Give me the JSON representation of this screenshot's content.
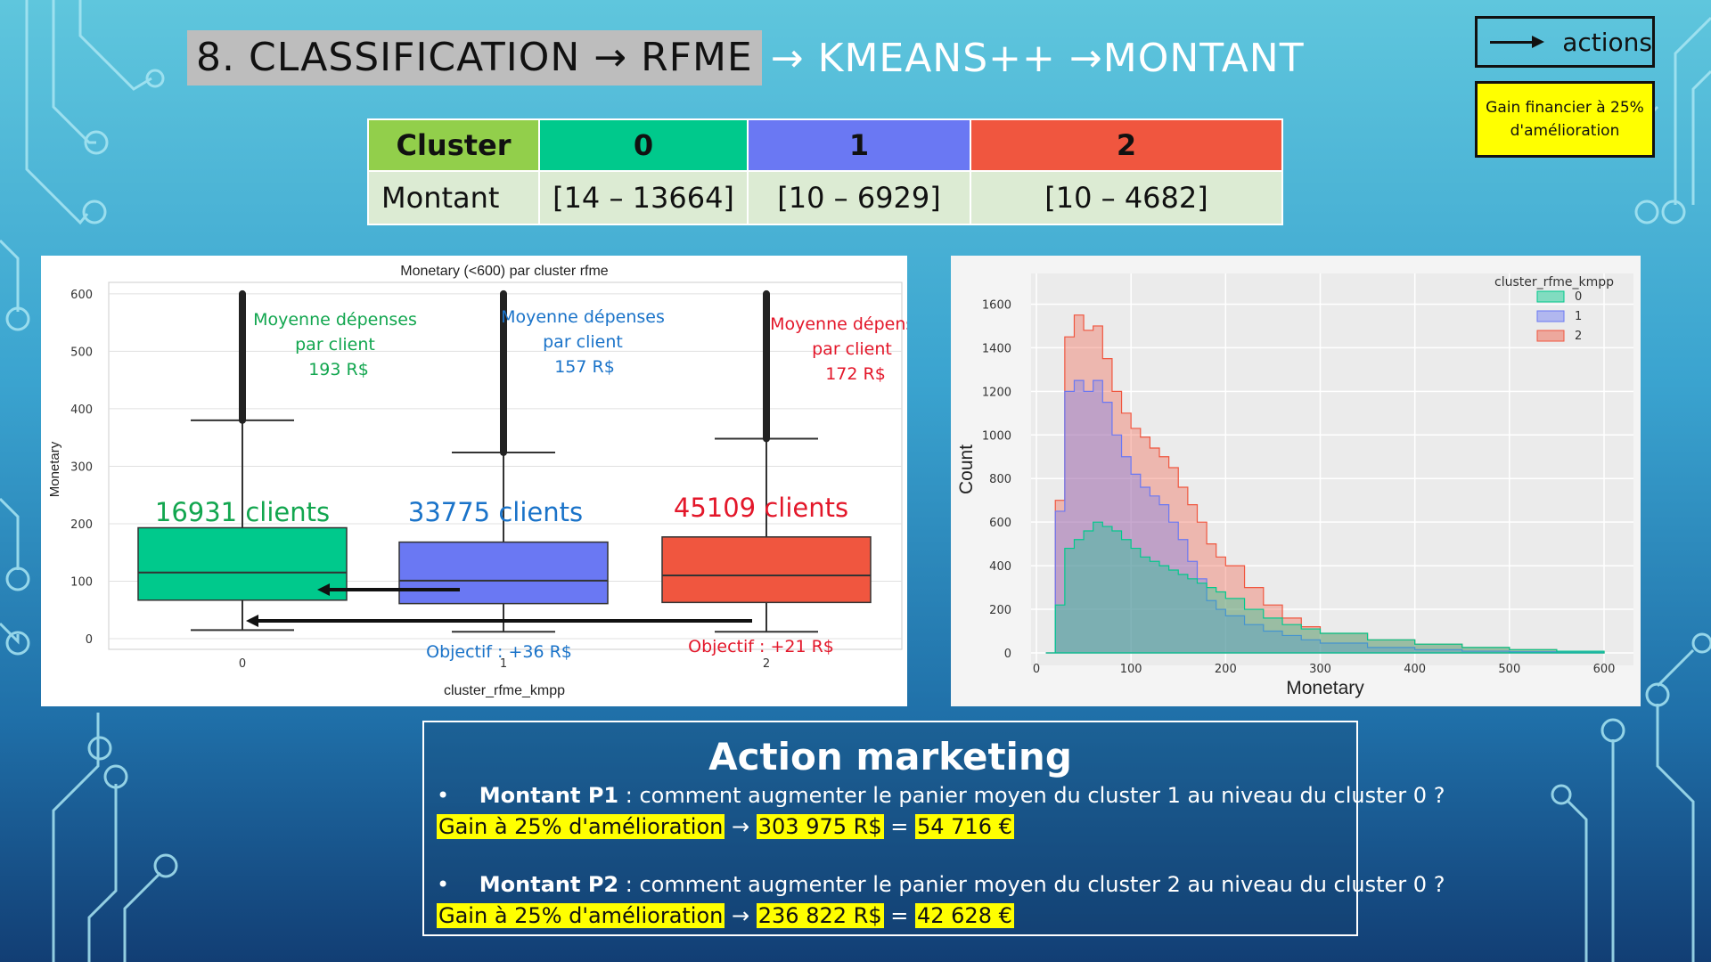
{
  "title": {
    "part1": "8. CLASSIFICATION → RFME",
    "part2": " → KMEANS++ →MONTANT"
  },
  "legend": {
    "actions_label": "actions",
    "gain_label": "Gain financier à 25% d'amélioration"
  },
  "colors": {
    "cluster0": "#00c98c",
    "cluster1": "#6a78f3",
    "cluster2": "#f0563f",
    "header_label": "#92cf4b"
  },
  "table": {
    "header": [
      "Cluster",
      "0",
      "1",
      "2"
    ],
    "row": [
      "Montant",
      "[14 – 13664]",
      "[10 – 6929]",
      "[10 – 4682]"
    ]
  },
  "boxplot": {
    "title": "Monetary (<600) par cluster rfme",
    "xlabel": "cluster_rfme_kmpp",
    "ylabel": "Monetary",
    "yticks": [
      "0",
      "100",
      "200",
      "300",
      "400",
      "500",
      "600"
    ],
    "xticks": [
      "0",
      "1",
      "2"
    ],
    "annotations": [
      {
        "l1": "Moyenne dépenses",
        "l2": "par client",
        "l3": "193 R$"
      },
      {
        "l1": "Moyenne dépenses",
        "l2": "par client",
        "l3": "157  R$"
      },
      {
        "l1": "Moyenne dépenses",
        "l2": "par client",
        "l3": "172  R$"
      }
    ],
    "counts": [
      "16931 clients",
      "33775 clients",
      "45109 clients"
    ],
    "objectives": [
      "Objectif : +36 R$",
      "Objectif : +21 R$"
    ]
  },
  "chart_data": [
    {
      "type": "box",
      "title": "Monetary (<600) par cluster rfme",
      "xlabel": "cluster_rfme_kmpp",
      "ylabel": "Monetary",
      "categories": [
        "0",
        "1",
        "2"
      ],
      "ylim": [
        0,
        620
      ],
      "boxes": [
        {
          "whisker_low": 15,
          "q1": 67,
          "median": 115,
          "q3": 193,
          "whisker_high": 380,
          "outliers_max": 600
        },
        {
          "whisker_low": 12,
          "q1": 61,
          "median": 101,
          "q3": 168,
          "whisker_high": 324,
          "outliers_max": 600
        },
        {
          "whisker_low": 12,
          "q1": 63,
          "median": 110,
          "q3": 177,
          "whisker_high": 348,
          "outliers_max": 600
        }
      ]
    },
    {
      "type": "area",
      "title": "",
      "xlabel": "Monetary",
      "ylabel": "Count",
      "xlim": [
        0,
        600
      ],
      "ylim": [
        0,
        1700
      ],
      "xticks": [
        "0",
        "100",
        "200",
        "300",
        "400",
        "500",
        "600"
      ],
      "yticks": [
        "0",
        "200",
        "400",
        "600",
        "800",
        "1000",
        "1200",
        "1400",
        "1600"
      ],
      "legend_title": "cluster_rfme_kmpp",
      "legend_position": "top-right",
      "x": [
        10,
        20,
        30,
        40,
        50,
        60,
        70,
        80,
        90,
        100,
        110,
        120,
        130,
        140,
        150,
        160,
        170,
        180,
        190,
        200,
        220,
        240,
        260,
        280,
        300,
        350,
        400,
        450,
        500,
        550,
        600
      ],
      "series": [
        {
          "name": "0",
          "values": [
            0,
            220,
            480,
            520,
            560,
            600,
            580,
            560,
            520,
            480,
            440,
            420,
            400,
            380,
            360,
            340,
            320,
            300,
            280,
            250,
            200,
            160,
            130,
            110,
            90,
            60,
            40,
            25,
            15,
            8,
            3
          ]
        },
        {
          "name": "1",
          "values": [
            0,
            650,
            1200,
            1250,
            1200,
            1250,
            1150,
            1000,
            900,
            820,
            760,
            720,
            680,
            600,
            520,
            420,
            340,
            240,
            200,
            170,
            130,
            100,
            80,
            60,
            45,
            25,
            15,
            8,
            5,
            3,
            1
          ]
        },
        {
          "name": "2",
          "values": [
            0,
            700,
            1450,
            1550,
            1480,
            1500,
            1350,
            1200,
            1100,
            1030,
            990,
            940,
            900,
            850,
            760,
            680,
            600,
            500,
            440,
            400,
            300,
            220,
            160,
            120,
            90,
            60,
            40,
            25,
            15,
            8,
            3
          ]
        }
      ]
    }
  ],
  "action": {
    "title": "Action marketing",
    "bullet": "•",
    "p1_bold": "Montant P1",
    "p1_text": " : comment augmenter le panier moyen du cluster 1 au niveau du cluster 0 ?",
    "gain_label": "Gain à 25% d'amélioration",
    "arrow": "→",
    "eq": "=",
    "p1_rs": "303 975 R$",
    "p1_eur": "54 716 €",
    "p2_bold": "Montant P2",
    "p2_text": " : comment augmenter le panier moyen du cluster 2 au niveau du cluster 0 ?",
    "p2_rs": "236 822 R$",
    "p2_eur": "42 628 €"
  }
}
